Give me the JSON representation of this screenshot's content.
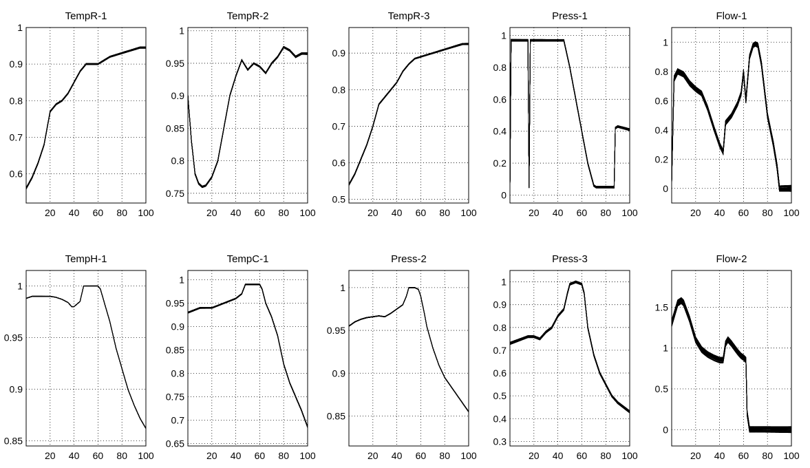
{
  "chart_data": [
    {
      "type": "line",
      "title": "TempR-1",
      "xlim": [
        0,
        100
      ],
      "ylim": [
        0.52,
        1.0
      ],
      "xticks": [
        20,
        40,
        60,
        80,
        100
      ],
      "yticks": [
        0.6,
        0.7,
        0.8,
        0.9,
        1
      ],
      "ytick_labels": [
        "0.6",
        "0.7",
        "0.8",
        "0.9",
        "1"
      ],
      "grid": true,
      "curve": {
        "x": [
          0,
          5,
          10,
          15,
          20,
          25,
          30,
          35,
          40,
          45,
          50,
          55,
          60,
          65,
          70,
          75,
          80,
          85,
          90,
          95,
          100
        ],
        "y": [
          0.56,
          0.59,
          0.63,
          0.68,
          0.77,
          0.79,
          0.8,
          0.82,
          0.85,
          0.88,
          0.9,
          0.9,
          0.9,
          0.91,
          0.92,
          0.925,
          0.93,
          0.935,
          0.94,
          0.945,
          0.945
        ]
      },
      "spread": 0.008,
      "lines": 40
    },
    {
      "type": "line",
      "title": "TempR-2",
      "xlim": [
        0,
        100
      ],
      "ylim": [
        0.735,
        1.005
      ],
      "xticks": [
        20,
        40,
        60,
        80,
        100
      ],
      "yticks": [
        0.75,
        0.8,
        0.85,
        0.9,
        0.95,
        1
      ],
      "ytick_labels": [
        "0.75",
        "0.8",
        "0.85",
        "0.9",
        "0.95",
        "1"
      ],
      "grid": true,
      "curve": {
        "x": [
          0,
          3,
          6,
          9,
          12,
          15,
          20,
          25,
          30,
          35,
          40,
          45,
          50,
          55,
          60,
          65,
          70,
          75,
          80,
          85,
          90,
          95,
          100
        ],
        "y": [
          0.9,
          0.83,
          0.78,
          0.765,
          0.76,
          0.762,
          0.775,
          0.8,
          0.85,
          0.9,
          0.93,
          0.955,
          0.94,
          0.95,
          0.945,
          0.935,
          0.95,
          0.96,
          0.975,
          0.97,
          0.96,
          0.965,
          0.965
        ]
      },
      "spread": 0.01,
      "lines": 40
    },
    {
      "type": "line",
      "title": "TempR-3",
      "xlim": [
        0,
        100
      ],
      "ylim": [
        0.49,
        0.97
      ],
      "xticks": [
        20,
        40,
        60,
        80,
        100
      ],
      "yticks": [
        0.5,
        0.6,
        0.7,
        0.8,
        0.9
      ],
      "ytick_labels": [
        "0.5",
        "0.6",
        "0.7",
        "0.8",
        "0.9"
      ],
      "grid": true,
      "curve": {
        "x": [
          0,
          5,
          10,
          15,
          20,
          25,
          30,
          35,
          40,
          45,
          50,
          55,
          60,
          65,
          70,
          75,
          80,
          85,
          90,
          95,
          100
        ],
        "y": [
          0.54,
          0.57,
          0.61,
          0.65,
          0.7,
          0.76,
          0.78,
          0.8,
          0.82,
          0.85,
          0.87,
          0.885,
          0.89,
          0.895,
          0.9,
          0.905,
          0.91,
          0.915,
          0.92,
          0.925,
          0.925
        ]
      },
      "spread": 0.008,
      "lines": 40
    },
    {
      "type": "line",
      "title": "Press-1",
      "xlim": [
        0,
        100
      ],
      "ylim": [
        -0.05,
        1.05
      ],
      "xticks": [
        20,
        40,
        60,
        80,
        100
      ],
      "yticks": [
        0,
        0.2,
        0.4,
        0.6,
        0.8,
        1
      ],
      "ytick_labels": [
        "0",
        "0.2",
        "0.4",
        "0.6",
        "0.8",
        "1"
      ],
      "grid": true,
      "curve": {
        "x": [
          0,
          1,
          2,
          15,
          16,
          17,
          18,
          19,
          45,
          50,
          55,
          60,
          65,
          70,
          72,
          85,
          87,
          88,
          90,
          95,
          100
        ],
        "y": [
          0.05,
          0.97,
          0.97,
          0.97,
          0.05,
          0.97,
          0.97,
          0.97,
          0.97,
          0.8,
          0.6,
          0.4,
          0.2,
          0.06,
          0.05,
          0.05,
          0.05,
          0.42,
          0.43,
          0.42,
          0.41
        ]
      },
      "spread": 0.01,
      "lines": 40
    },
    {
      "type": "line",
      "title": "Flow-1",
      "xlim": [
        0,
        100
      ],
      "ylim": [
        -0.1,
        1.1
      ],
      "xticks": [
        20,
        40,
        60,
        80,
        100
      ],
      "yticks": [
        0,
        0.2,
        0.4,
        0.6,
        0.8,
        1
      ],
      "ytick_labels": [
        "0",
        "0.2",
        "0.4",
        "0.6",
        "0.8",
        "1"
      ],
      "grid": true,
      "curve": {
        "x": [
          0,
          2,
          5,
          10,
          15,
          20,
          25,
          30,
          35,
          40,
          43,
          45,
          50,
          55,
          58,
          60,
          62,
          65,
          68,
          70,
          72,
          75,
          80,
          85,
          88,
          90,
          92,
          100
        ],
        "y": [
          0.05,
          0.75,
          0.8,
          0.78,
          0.72,
          0.68,
          0.65,
          0.55,
          0.42,
          0.3,
          0.25,
          0.45,
          0.5,
          0.58,
          0.65,
          0.8,
          0.6,
          0.9,
          0.98,
          0.99,
          0.98,
          0.85,
          0.5,
          0.3,
          0.15,
          0.0,
          0.0,
          0.0
        ]
      },
      "spread": 0.03,
      "lines": 40
    },
    {
      "type": "line",
      "title": "TempH-1",
      "xlim": [
        0,
        100
      ],
      "ylim": [
        0.845,
        1.015
      ],
      "xticks": [
        20,
        40,
        60,
        80,
        100
      ],
      "yticks": [
        0.85,
        0.9,
        0.95,
        1
      ],
      "ytick_labels": [
        "0.85",
        "0.9",
        "0.95",
        "1"
      ],
      "grid": true,
      "curve": {
        "x": [
          0,
          5,
          10,
          15,
          20,
          25,
          30,
          35,
          38,
          40,
          42,
          45,
          48,
          50,
          55,
          60,
          62,
          65,
          70,
          75,
          80,
          85,
          90,
          95,
          100
        ],
        "y": [
          0.988,
          0.99,
          0.99,
          0.99,
          0.99,
          0.989,
          0.987,
          0.984,
          0.98,
          0.98,
          0.982,
          0.985,
          1.0,
          1.0,
          1.0,
          1.0,
          0.997,
          0.985,
          0.965,
          0.94,
          0.92,
          0.9,
          0.885,
          0.872,
          0.862
        ]
      },
      "spread": 0.002,
      "lines": 40
    },
    {
      "type": "line",
      "title": "TempC-1",
      "xlim": [
        0,
        100
      ],
      "ylim": [
        0.645,
        1.02
      ],
      "xticks": [
        20,
        40,
        60,
        80,
        100
      ],
      "yticks": [
        0.65,
        0.7,
        0.75,
        0.8,
        0.85,
        0.9,
        0.95,
        1
      ],
      "ytick_labels": [
        "0.65",
        "0.7",
        "0.75",
        "0.8",
        "0.85",
        "0.9",
        "0.95",
        "1"
      ],
      "grid": true,
      "curve": {
        "x": [
          0,
          10,
          20,
          25,
          30,
          35,
          40,
          45,
          48,
          50,
          55,
          60,
          62,
          65,
          70,
          75,
          80,
          85,
          90,
          95,
          100
        ],
        "y": [
          0.93,
          0.94,
          0.94,
          0.945,
          0.95,
          0.955,
          0.96,
          0.97,
          0.99,
          0.99,
          0.99,
          0.99,
          0.98,
          0.95,
          0.92,
          0.88,
          0.82,
          0.78,
          0.75,
          0.72,
          0.685
        ]
      },
      "spread": 0.006,
      "lines": 40
    },
    {
      "type": "line",
      "title": "Press-2",
      "xlim": [
        0,
        100
      ],
      "ylim": [
        0.815,
        1.02
      ],
      "xticks": [
        20,
        40,
        60,
        80,
        100
      ],
      "yticks": [
        0.85,
        0.9,
        0.95,
        1
      ],
      "ytick_labels": [
        "0.85",
        "0.9",
        "0.95",
        "1"
      ],
      "grid": true,
      "curve": {
        "x": [
          0,
          5,
          10,
          15,
          20,
          25,
          30,
          35,
          40,
          45,
          48,
          50,
          55,
          58,
          60,
          63,
          65,
          70,
          75,
          80,
          85,
          90,
          95,
          100
        ],
        "y": [
          0.955,
          0.96,
          0.963,
          0.965,
          0.966,
          0.967,
          0.966,
          0.97,
          0.975,
          0.98,
          0.99,
          1.0,
          1.0,
          0.998,
          0.99,
          0.97,
          0.955,
          0.93,
          0.91,
          0.895,
          0.885,
          0.875,
          0.865,
          0.855
        ]
      },
      "spread": 0.003,
      "lines": 40
    },
    {
      "type": "line",
      "title": "Press-3",
      "xlim": [
        0,
        100
      ],
      "ylim": [
        0.28,
        1.05
      ],
      "xticks": [
        20,
        40,
        60,
        80,
        100
      ],
      "yticks": [
        0.3,
        0.4,
        0.5,
        0.6,
        0.7,
        0.8,
        0.9,
        1
      ],
      "ytick_labels": [
        "0.3",
        "0.4",
        "0.5",
        "0.6",
        "0.7",
        "0.8",
        "0.9",
        "1"
      ],
      "grid": true,
      "curve": {
        "x": [
          0,
          5,
          10,
          15,
          20,
          25,
          30,
          35,
          40,
          45,
          48,
          50,
          55,
          60,
          62,
          65,
          70,
          75,
          80,
          85,
          90,
          95,
          100
        ],
        "y": [
          0.73,
          0.74,
          0.75,
          0.76,
          0.76,
          0.75,
          0.78,
          0.8,
          0.85,
          0.88,
          0.95,
          0.99,
          1.0,
          0.99,
          0.95,
          0.8,
          0.68,
          0.6,
          0.55,
          0.5,
          0.47,
          0.45,
          0.43
        ]
      },
      "spread": 0.012,
      "lines": 40
    },
    {
      "type": "line",
      "title": "Flow-2",
      "xlim": [
        0,
        100
      ],
      "ylim": [
        -0.2,
        1.95
      ],
      "xticks": [
        20,
        40,
        60,
        80,
        100
      ],
      "yticks": [
        0,
        0.5,
        1,
        1.5
      ],
      "ytick_labels": [
        "0",
        "0.5",
        "1",
        "1.5"
      ],
      "grid": true,
      "curve": {
        "x": [
          0,
          3,
          5,
          8,
          10,
          15,
          20,
          25,
          30,
          35,
          40,
          43,
          45,
          47,
          50,
          55,
          58,
          60,
          62,
          63,
          65,
          100
        ],
        "y": [
          1.3,
          1.45,
          1.55,
          1.58,
          1.55,
          1.35,
          1.1,
          0.98,
          0.92,
          0.88,
          0.85,
          0.85,
          1.05,
          1.1,
          1.05,
          0.95,
          0.9,
          0.88,
          0.85,
          0.2,
          0.0,
          0.0
        ]
      },
      "spread": 0.03,
      "lines": 40
    }
  ]
}
